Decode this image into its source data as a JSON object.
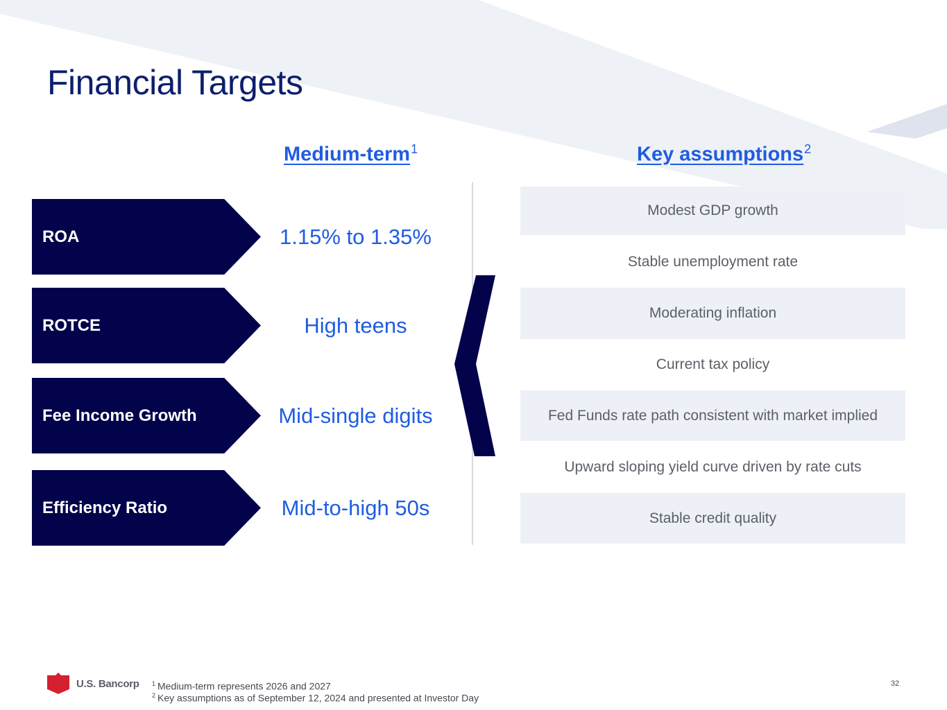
{
  "title": "Financial Targets",
  "columns": {
    "medium_term": {
      "label": "Medium-term",
      "note": "1"
    },
    "key_assumptions": {
      "label": "Key assumptions",
      "note": "2"
    }
  },
  "metrics": [
    {
      "label": "ROA",
      "target": "1.15% to 1.35%"
    },
    {
      "label": "ROTCE",
      "target": "High teens"
    },
    {
      "label": "Fee Income Growth",
      "target": "Mid-single digits"
    },
    {
      "label": "Efficiency Ratio",
      "target": "Mid-to-high 50s"
    }
  ],
  "assumptions": [
    "Modest GDP growth",
    "Stable unemployment rate",
    "Moderating inflation",
    "Current tax policy",
    "Fed Funds rate path consistent with market implied",
    "Upward sloping yield curve driven by rate cuts",
    "Stable credit quality"
  ],
  "footnotes": [
    {
      "mark": "1",
      "text": "Medium-term represents 2026 and 2027"
    },
    {
      "mark": "2",
      "text": "Key assumptions as of September 12, 2024 and presented at Investor Day"
    }
  ],
  "logo": {
    "text": "U.S. Bancorp",
    "icon": "shield-logo-icon"
  },
  "page_number": "32",
  "colors": {
    "navy": "#02034a",
    "accent_blue": "#1f5ce0",
    "title_blue": "#0c1f6b",
    "shade": "#edf0f6",
    "logo_red": "#d5202f"
  }
}
